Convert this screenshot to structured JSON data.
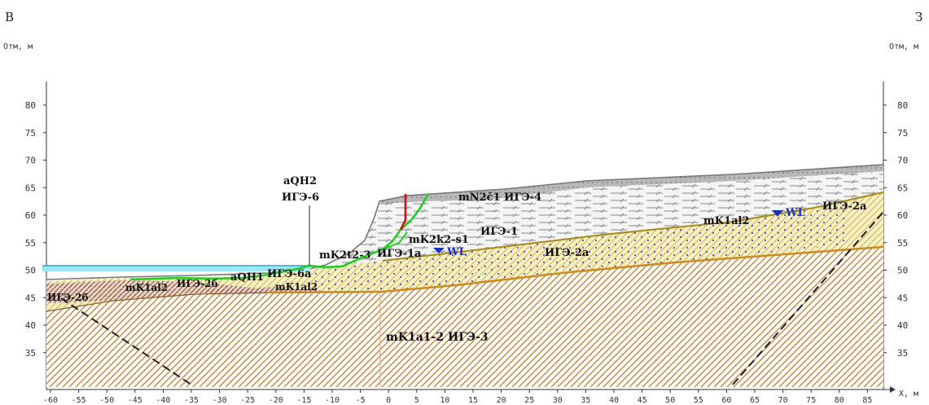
{
  "title_left": "В",
  "title_right": "З",
  "y_axis_label_left": "Отм, м",
  "y_axis_label_right": "Отм, м",
  "x_axis_label": "X, м",
  "y_ticks": [
    "80",
    "75",
    "70",
    "65",
    "60",
    "55",
    "50",
    "45",
    "40",
    "35"
  ],
  "x_ticks": [
    "-60",
    "-55",
    "-50",
    "-45",
    "-40",
    "-35",
    "-30",
    "-25",
    "-20",
    "-15",
    "-10",
    "-5",
    "0",
    "5",
    "10",
    "15",
    "20",
    "25",
    "30",
    "35",
    "40",
    "45",
    "50",
    "55",
    "60",
    "65",
    "70",
    "75",
    "80",
    "85"
  ],
  "labels": {
    "aqh2_top": "aQH2",
    "ige6_top": "ИГЭ-6",
    "n2_ige4": "mN2č1 ИГЭ-4",
    "ige1": "ИГЭ-1",
    "k2k2": "mK2k2-s1",
    "k2t2": "mK2t2-3",
    "ige1a": "ИГЭ-1а",
    "wl_left": "WL",
    "ige2a_mid": "ИГЭ-2а",
    "k1al2_right": "mK1al2",
    "wl_right": "WL",
    "ige2a_right": "ИГЭ-2а",
    "ige2b_left": "ИГЭ-2б",
    "k1al2_left": "mK1al2",
    "ige2b_mid": "ИГЭ-2б",
    "aqh1": "aQH1",
    "ige6a": "ИГЭ-6а",
    "k1al2_low": "mK1al2",
    "base": "mK1a1-2  ИГЭ-3"
  },
  "colors": {
    "water": "#66d9e8",
    "water_line": "#2aa8c8",
    "green_line": "#22cc22",
    "red_line": "#cc1111",
    "orange_line": "#cc8a22",
    "wl_blue": "#1a2fbf",
    "grey_top": "#9a9a9a",
    "yellow_sand": "#f6f0c2"
  }
}
